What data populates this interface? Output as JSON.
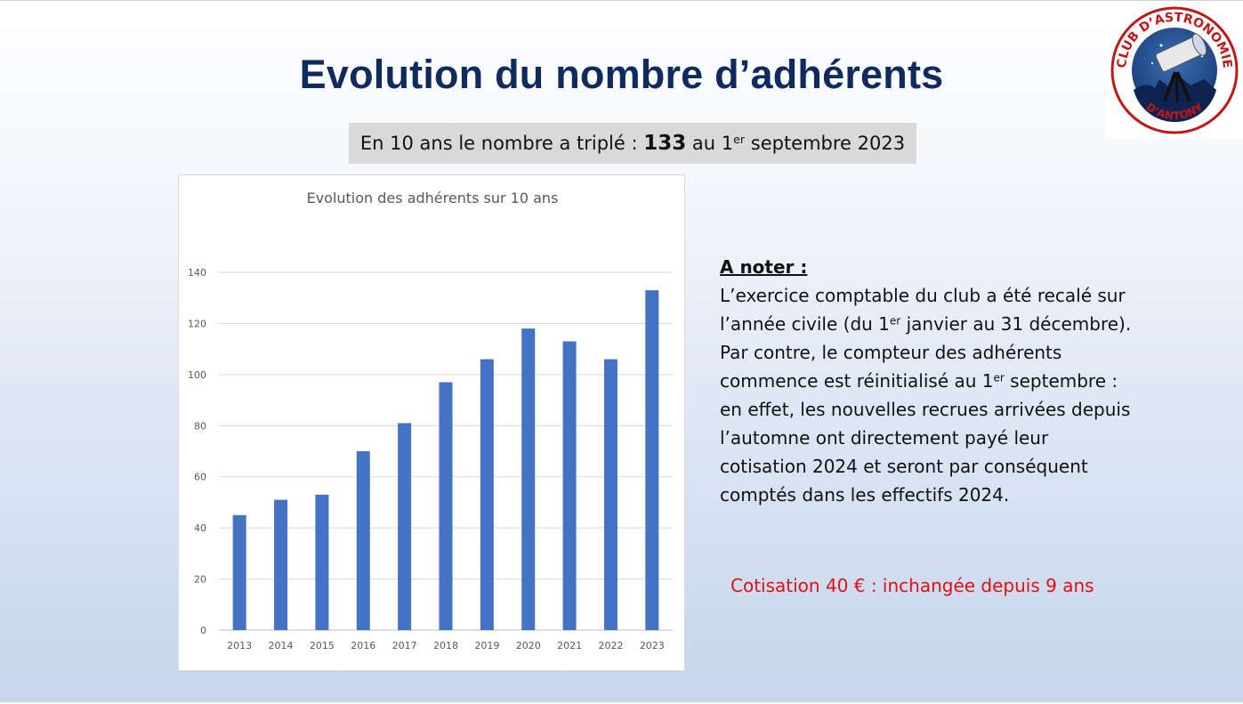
{
  "slide": {
    "title": "Evolution du nombre d’adhérents",
    "subtitle": {
      "before": "En 10 ans le nombre a triplé : ",
      "count": "133",
      "middle": " au 1",
      "sup": "er",
      "after": " septembre 2023"
    }
  },
  "chart_data": {
    "type": "bar",
    "title": "Evolution des adhérents sur 10 ans",
    "xlabel": "",
    "ylabel": "",
    "categories": [
      "2013",
      "2014",
      "2015",
      "2016",
      "2017",
      "2018",
      "2019",
      "2020",
      "2021",
      "2022",
      "2023"
    ],
    "values": [
      45,
      51,
      53,
      70,
      81,
      97,
      106,
      118,
      113,
      106,
      133
    ],
    "ylim": [
      0,
      140
    ],
    "yticks": [
      "0",
      "20",
      "40",
      "60",
      "80",
      "100",
      "120",
      "140"
    ],
    "grid": true,
    "bar_color": "#4472c4"
  },
  "notes": {
    "heading": "A noter :",
    "l1": "L’exercice comptable du club a été recalé sur",
    "l2a": "l’année civile (du 1",
    "l2sup": "er",
    "l2b": " janvier au 31 décembre).",
    "l3": "Par contre, le compteur des adhérents",
    "l4a": "commence est réinitialisé au 1",
    "l4sup": "er",
    "l4b": " septembre :",
    "l5": "en effet, les nouvelles recrues arrivées depuis",
    "l6": "l’automne ont directement payé leur",
    "l7": "cotisation 2024 et seront par conséquent",
    "l8": "comptés dans les effectifs 2024."
  },
  "fee": {
    "text": "Cotisation 40 € : inchangée depuis 9 ans",
    "color": "#e01010"
  },
  "logo": {
    "top_text": "CLUB D’ASTRONOMIE",
    "bottom_text": "D’ANTONY",
    "icon": "telescope-icon"
  }
}
